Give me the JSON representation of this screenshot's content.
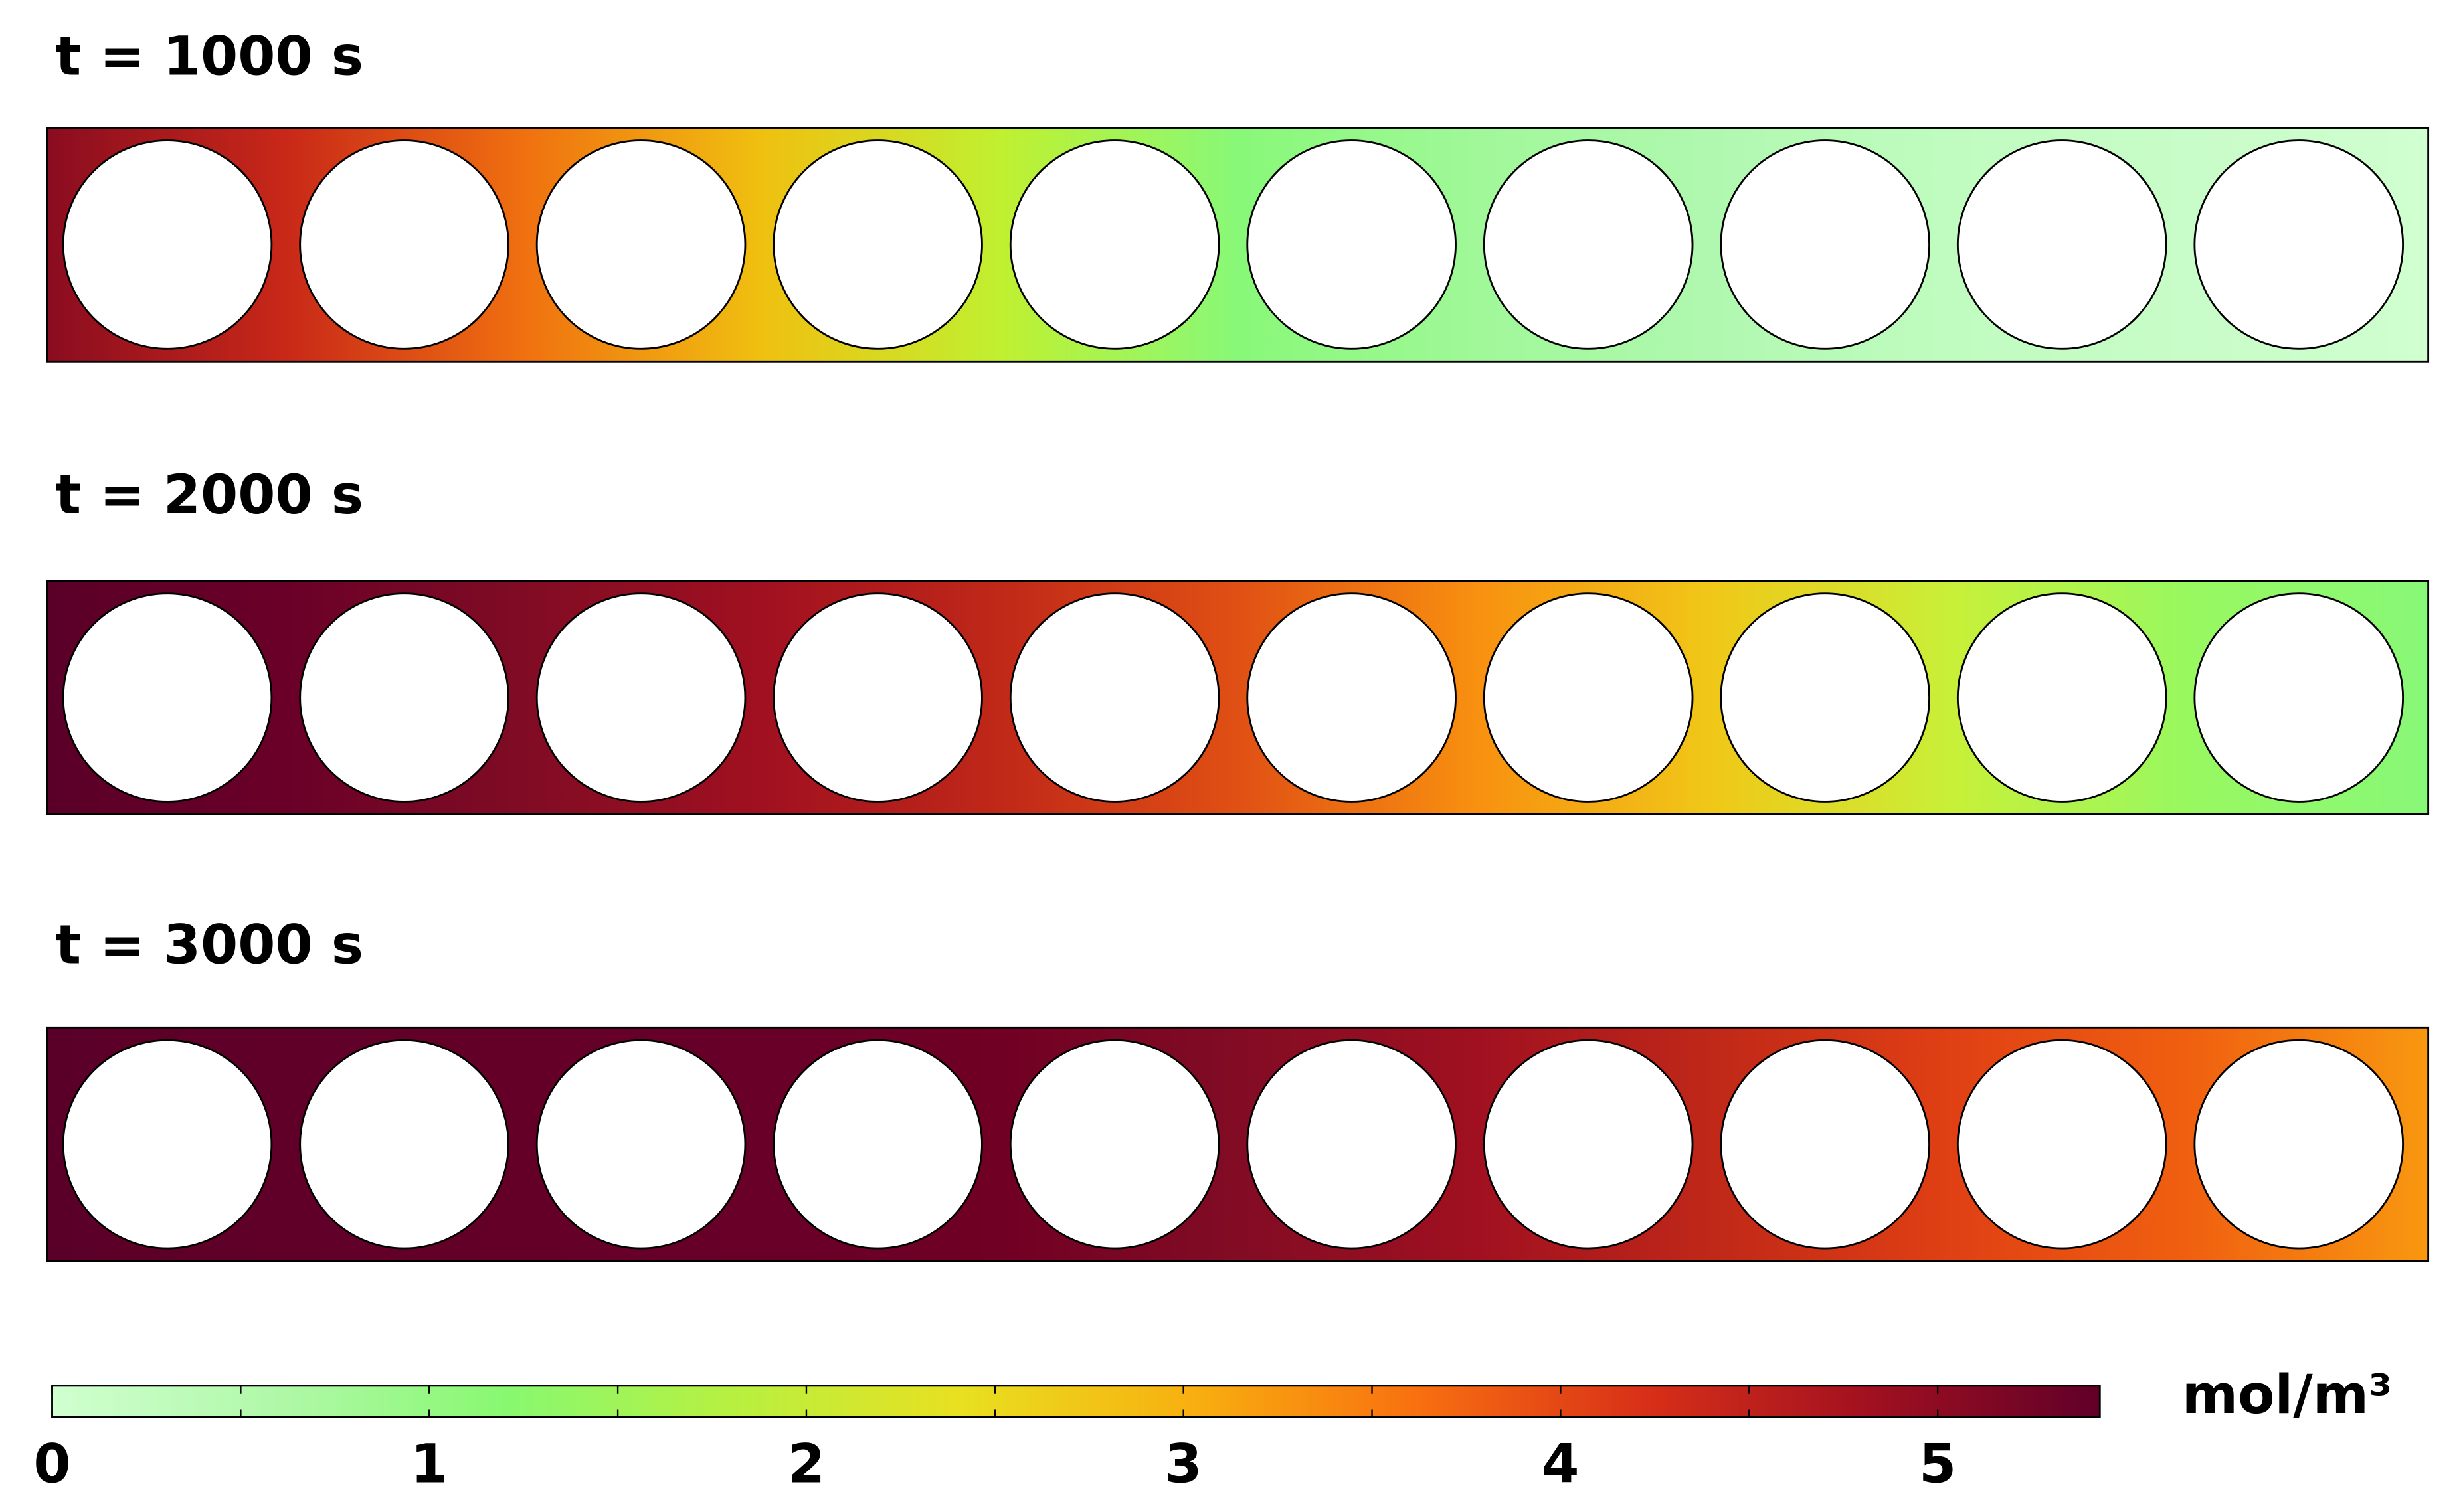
{
  "panels": [
    {
      "title": "t = 1000 s",
      "colors": [
        "#8a0c20",
        "#c82818",
        "#f07010",
        "#f0c010",
        "#c0f030",
        "#88f878",
        "#a0f898",
        "#b0f8b0",
        "#c0fcc0",
        "#c8fcc8",
        "#d0ffd0"
      ]
    },
    {
      "title": "t = 2000 s",
      "colors": [
        "#5a0028",
        "#6a0028",
        "#800c24",
        "#a01020",
        "#c02818",
        "#e05014",
        "#f89010",
        "#f0c818",
        "#c8f038",
        "#98f860",
        "#88f878"
      ]
    },
    {
      "title": "t = 3000 s",
      "colors": [
        "#5a0028",
        "#600028",
        "#640028",
        "#680028",
        "#700024",
        "#820c24",
        "#a01020",
        "#c02818",
        "#e04014",
        "#f06010",
        "#f89810"
      ]
    }
  ],
  "colorbar": {
    "unit": "mol/m³",
    "lim": [
      0,
      5.43
    ],
    "ticks": [
      0,
      1,
      2,
      3,
      4,
      5
    ],
    "minor_ticks": [
      0.5,
      1.5,
      2.5,
      3.5,
      4.5
    ],
    "colors": [
      "#d0ffd0",
      "#b0f8a8",
      "#88f870",
      "#b8f040",
      "#e8e020",
      "#f8b010",
      "#f87010",
      "#d83018",
      "#a01020",
      "#600028"
    ]
  }
}
